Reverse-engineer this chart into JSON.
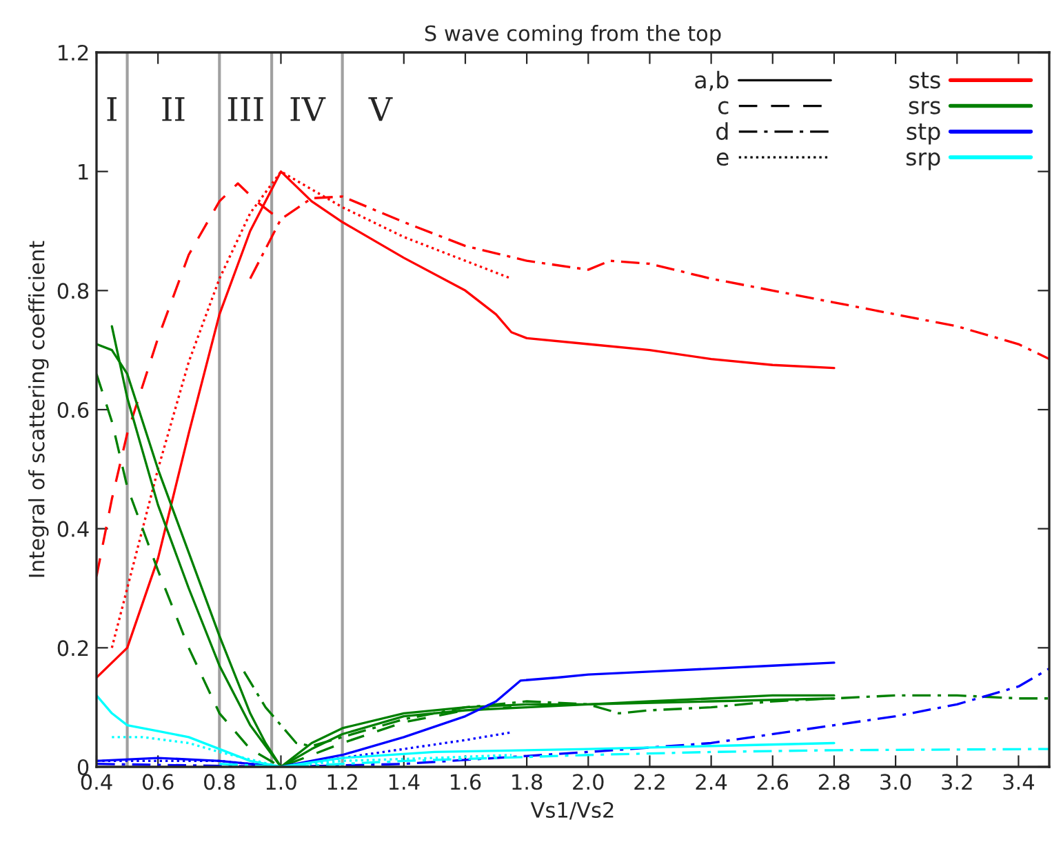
{
  "chart_data": {
    "type": "line",
    "title": "S wave coming from the top",
    "xlabel": "Vs1/Vs2",
    "ylabel": "Integral of scattering coefficient",
    "xlim": [
      0.4,
      3.5
    ],
    "ylim": [
      0,
      1.2
    ],
    "xticks": [
      0.4,
      0.6,
      0.8,
      {
        "value": 1,
        "label": "1.0"
      },
      1.2,
      1.4,
      1.6,
      1.8,
      {
        "value": 2,
        "label": "2.0"
      },
      2.2,
      2.4,
      2.6,
      2.8,
      {
        "value": 3,
        "label": "3.0"
      },
      3.2,
      3.4
    ],
    "yticks": [
      0,
      0.2,
      0.4,
      0.6,
      0.8,
      1,
      1.2
    ],
    "grid": false,
    "legend": "top right",
    "ref_lines": [
      {
        "axis": "x",
        "value": 0.5,
        "color": "#a0a0a0"
      },
      {
        "axis": "x",
        "value": 0.8,
        "color": "#a0a0a0"
      },
      {
        "axis": "x",
        "value": 0.97,
        "color": "#a0a0a0"
      },
      {
        "axis": "x",
        "value": 1.2,
        "color": "#a0a0a0"
      }
    ],
    "annotations": [
      "I",
      "II",
      "III",
      "IV",
      "V",
      "a,b",
      "c",
      "d",
      "e"
    ],
    "series": [
      {
        "name": "sts",
        "color": "#ff0000",
        "line_style": "solid",
        "x": [
          0.4,
          0.5,
          0.6,
          0.7,
          0.8,
          0.9,
          1.0,
          1.1,
          1.2,
          1.4,
          1.6,
          1.7,
          1.75,
          1.8,
          2.0,
          2.2,
          2.4,
          2.6,
          2.8
        ],
        "values": [
          0.15,
          0.2,
          0.35,
          0.56,
          0.76,
          0.9,
          1.0,
          0.95,
          0.915,
          0.855,
          0.8,
          0.76,
          0.73,
          0.72,
          0.71,
          0.7,
          0.685,
          0.675,
          0.67
        ]
      },
      {
        "color": "#ff0000",
        "line_style": "dashed",
        "x": [
          0.4,
          0.45,
          0.5,
          0.6,
          0.7,
          0.8,
          0.86,
          0.92,
          0.97,
          1.0
        ],
        "values": [
          0.32,
          0.45,
          0.56,
          0.72,
          0.86,
          0.95,
          0.98,
          0.95,
          0.93,
          0.92
        ]
      },
      {
        "color": "#ff0000",
        "line_style": "dashdot",
        "x": [
          0.9,
          0.95,
          1.0,
          1.1,
          1.2,
          1.4,
          1.6,
          1.8,
          2.0,
          2.07,
          2.2,
          2.4,
          2.6,
          2.8,
          3.0,
          3.2,
          3.4,
          3.5
        ],
        "values": [
          0.82,
          0.87,
          0.92,
          0.955,
          0.958,
          0.915,
          0.875,
          0.85,
          0.835,
          0.85,
          0.845,
          0.82,
          0.8,
          0.78,
          0.76,
          0.74,
          0.71,
          0.685
        ]
      },
      {
        "color": "#ff0000",
        "line_style": "dotted",
        "x": [
          0.45,
          0.5,
          0.6,
          0.7,
          0.8,
          0.9,
          1.0,
          1.2,
          1.4,
          1.6,
          1.75
        ],
        "values": [
          0.2,
          0.3,
          0.5,
          0.68,
          0.82,
          0.93,
          1.0,
          0.94,
          0.89,
          0.85,
          0.82
        ]
      },
      {
        "name": "srs",
        "color": "#008000",
        "line_style": "solid",
        "x": [
          0.4,
          0.45,
          0.5,
          0.6,
          0.7,
          0.8,
          0.9,
          0.95,
          1.0,
          1.1,
          1.2,
          1.4,
          1.6,
          1.8,
          2.0,
          2.2,
          2.4,
          2.6,
          2.8
        ],
        "values": [
          0.71,
          0.7,
          0.66,
          0.5,
          0.36,
          0.22,
          0.09,
          0.04,
          0.0,
          0.04,
          0.065,
          0.09,
          0.1,
          0.105,
          0.105,
          0.11,
          0.115,
          0.12,
          0.12
        ]
      },
      {
        "color": "#008000",
        "line_style": "solid",
        "x": [
          0.45,
          0.5,
          0.6,
          0.7,
          0.8,
          0.9,
          1.0,
          1.1,
          1.2,
          1.4,
          1.6,
          1.8,
          2.0,
          2.4,
          2.8
        ],
        "values": [
          0.74,
          0.62,
          0.44,
          0.3,
          0.17,
          0.07,
          0.0,
          0.03,
          0.055,
          0.085,
          0.095,
          0.1,
          0.105,
          0.11,
          0.115
        ]
      },
      {
        "color": "#008000",
        "line_style": "dashed",
        "x": [
          0.4,
          0.45,
          0.5,
          0.6,
          0.7,
          0.8,
          0.9,
          1.0,
          1.1,
          1.2,
          1.4,
          1.6,
          1.75
        ],
        "values": [
          0.66,
          0.58,
          0.47,
          0.33,
          0.2,
          0.09,
          0.03,
          0.0,
          0.02,
          0.04,
          0.075,
          0.095,
          0.1
        ]
      },
      {
        "color": "#008000",
        "line_style": "dashdot",
        "x": [
          0.88,
          0.95,
          1.0,
          1.05,
          1.1,
          1.2,
          1.4,
          1.6,
          1.8,
          2.0,
          2.1,
          2.2,
          2.4,
          2.6,
          2.8,
          3.0,
          3.2,
          3.4,
          3.5
        ],
        "values": [
          0.16,
          0.1,
          0.07,
          0.04,
          0.035,
          0.05,
          0.08,
          0.1,
          0.11,
          0.105,
          0.09,
          0.095,
          0.1,
          0.11,
          0.115,
          0.12,
          0.12,
          0.115,
          0.115
        ]
      },
      {
        "name": "stp",
        "color": "#0000ff",
        "line_style": "solid",
        "x": [
          0.4,
          0.6,
          0.8,
          1.0,
          1.2,
          1.4,
          1.6,
          1.7,
          1.78,
          1.9,
          2.0,
          2.2,
          2.4,
          2.6,
          2.8
        ],
        "values": [
          0.01,
          0.015,
          0.01,
          0.0,
          0.02,
          0.05,
          0.085,
          0.11,
          0.145,
          0.15,
          0.155,
          0.16,
          0.165,
          0.17,
          0.175
        ]
      },
      {
        "color": "#0000ff",
        "line_style": "dashdot",
        "x": [
          0.4,
          1.0,
          1.4,
          2.0,
          2.4,
          2.8,
          3.0,
          3.2,
          3.4,
          3.5
        ],
        "values": [
          0.005,
          0.0,
          0.005,
          0.025,
          0.04,
          0.07,
          0.085,
          0.105,
          0.135,
          0.165
        ]
      },
      {
        "color": "#0000ff",
        "line_style": "dotted",
        "x": [
          0.4,
          0.8,
          1.0,
          1.2,
          1.4,
          1.6,
          1.75
        ],
        "values": [
          0.01,
          0.01,
          0.0,
          0.015,
          0.03,
          0.045,
          0.058
        ]
      },
      {
        "name": "srp",
        "color": "#00ffff",
        "line_style": "solid",
        "x": [
          0.4,
          0.45,
          0.5,
          0.6,
          0.7,
          0.8,
          0.9,
          1.0,
          1.2,
          1.5,
          2.0,
          2.4,
          2.8
        ],
        "values": [
          0.12,
          0.09,
          0.07,
          0.06,
          0.05,
          0.03,
          0.01,
          0.0,
          0.015,
          0.025,
          0.03,
          0.035,
          0.04
        ]
      },
      {
        "color": "#00ffff",
        "line_style": "dotted",
        "x": [
          0.45,
          0.55,
          0.7,
          0.8,
          1.0,
          1.2,
          1.5,
          1.75
        ],
        "values": [
          0.05,
          0.05,
          0.04,
          0.025,
          0.0,
          0.01,
          0.015,
          0.02
        ]
      },
      {
        "color": "#00ffff",
        "line_style": "dashdot",
        "x": [
          0.8,
          1.0,
          1.4,
          2.0,
          2.4,
          2.8,
          3.5
        ],
        "values": [
          0.005,
          0.0,
          0.01,
          0.02,
          0.025,
          0.028,
          0.03
        ]
      }
    ]
  }
}
